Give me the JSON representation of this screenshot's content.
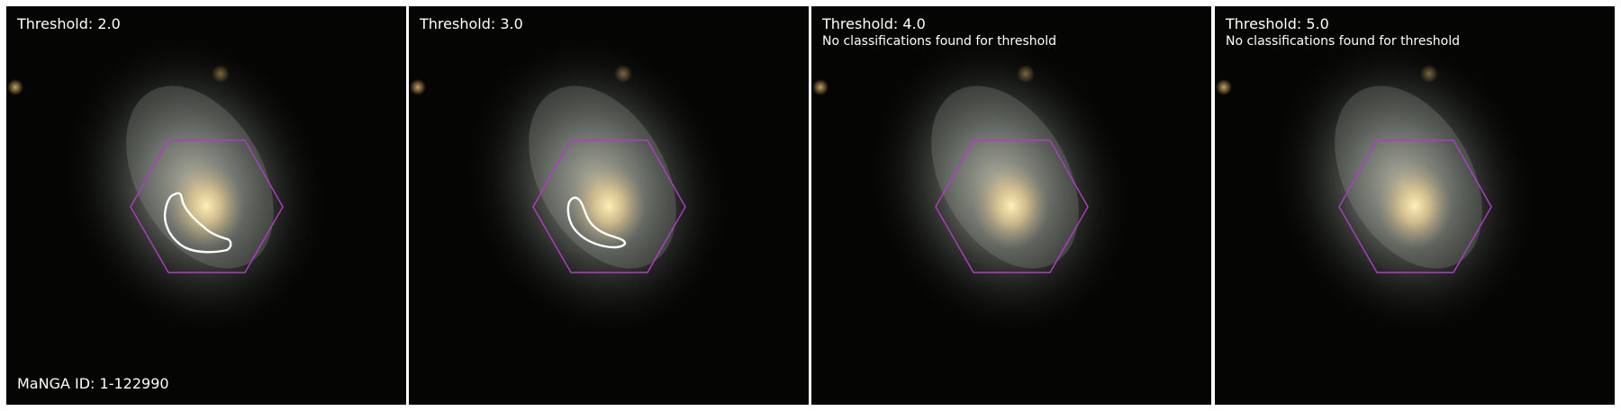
{
  "panels": [
    {
      "title": "Threshold: 2.0",
      "note": "",
      "has_region": true,
      "region": "large"
    },
    {
      "title": "Threshold: 3.0",
      "note": "",
      "has_region": true,
      "region": "small"
    },
    {
      "title": "Threshold: 4.0",
      "note": "No classifications found for threshold",
      "has_region": false
    },
    {
      "title": "Threshold: 5.0",
      "note": "No classifications found for threshold",
      "has_region": false
    }
  ],
  "manga_id": "MaNGA ID: 1-122990",
  "colors": {
    "hexagon": "#b03cc8",
    "region_outline": "#ffffff",
    "text": "#ffffff",
    "background": "#050504"
  }
}
